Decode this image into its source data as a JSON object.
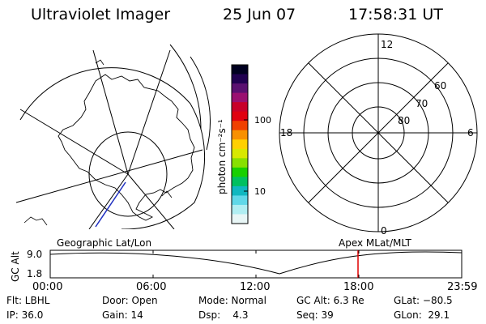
{
  "header": {
    "instrument": "Ultraviolet Imager",
    "date": "25 Jun 07",
    "time": "17:58:31 UT"
  },
  "geo_map": {
    "label": "Geographic Lat/Lon"
  },
  "colorbar": {
    "unit_label": "photon cm⁻²s⁻¹",
    "ticks": [
      "100",
      "10"
    ],
    "colors": [
      "#000020",
      "#200050",
      "#5a1070",
      "#9a1070",
      "#c8002a",
      "#e00010",
      "#f04000",
      "#f89000",
      "#ffd000",
      "#d8e800",
      "#88e000",
      "#18d000",
      "#00c060",
      "#10b8c0",
      "#60d8e8",
      "#b0eef2",
      "#e8f6f6"
    ]
  },
  "polar_plot": {
    "label": "Apex MLat/MLT",
    "mlt_labels": {
      "top": "12",
      "bottom": "0",
      "left": "18",
      "right": "6"
    },
    "mlat_labels": [
      "60",
      "70",
      "80"
    ]
  },
  "timeline": {
    "ylabel": "GC Alt",
    "ymax_label": "9.0",
    "ymin_label": "1.8",
    "x_ticks": [
      "00:00",
      "06:00",
      "12:00",
      "18:00",
      "23:59"
    ],
    "current_time_marker": "18:00",
    "marker_color": "#e00000"
  },
  "status": {
    "flt": "Flt: LBHL",
    "ip": "IP: 36.0",
    "door": "Door: Open",
    "gain": "Gain: 14",
    "mode": "Mode: Normal",
    "dsp": "Dsp:    4.3",
    "gcalt": "GC Alt: 6.3 Re",
    "seq": "Seq: 39",
    "glat": "GLat: −80.5",
    "glon": "GLon:  29.1"
  }
}
